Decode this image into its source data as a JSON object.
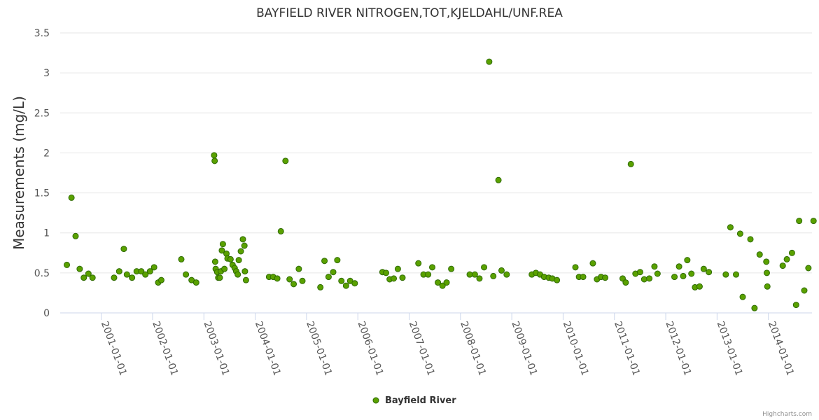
{
  "chart_data": {
    "type": "scatter",
    "title": "BAYFIELD RIVER NITROGEN,TOT,KJELDAHL/UNF.REA",
    "xlabel": "",
    "ylabel": "Measurements (mg/L)",
    "ylim": [
      0,
      3.5
    ],
    "yticks": [
      "0",
      "0.5",
      "1",
      "1.5",
      "2",
      "2.5",
      "3",
      "3.5"
    ],
    "xlim": [
      2000.2,
      2014.85
    ],
    "xticks": [
      {
        "label": "2001-01-01",
        "value": 2001.0
      },
      {
        "label": "2002-01-01",
        "value": 2002.0
      },
      {
        "label": "2003-01-01",
        "value": 2003.0
      },
      {
        "label": "2004-01-01",
        "value": 2004.0
      },
      {
        "label": "2005-01-01",
        "value": 2005.0
      },
      {
        "label": "2006-01-01",
        "value": 2006.0
      },
      {
        "label": "2007-01-01",
        "value": 2007.0
      },
      {
        "label": "2008-01-01",
        "value": 2008.0
      },
      {
        "label": "2009-01-01",
        "value": 2009.0
      },
      {
        "label": "2010-01-01",
        "value": 2010.0
      },
      {
        "label": "2011-01-01",
        "value": 2011.0
      },
      {
        "label": "2012-01-01",
        "value": 2012.0
      },
      {
        "label": "2013-01-01",
        "value": 2013.0
      },
      {
        "label": "2014-01-01",
        "value": 2014.0
      }
    ],
    "grid": true,
    "legend_position": "bottom-center",
    "series": [
      {
        "name": "Bayfield River",
        "color": "#5aa100",
        "points": [
          [
            2000.33,
            0.6
          ],
          [
            2000.42,
            1.44
          ],
          [
            2000.5,
            0.96
          ],
          [
            2000.58,
            0.55
          ],
          [
            2000.66,
            0.44
          ],
          [
            2000.75,
            0.49
          ],
          [
            2000.83,
            0.44
          ],
          [
            2001.25,
            0.44
          ],
          [
            2001.35,
            0.52
          ],
          [
            2001.44,
            0.8
          ],
          [
            2001.5,
            0.48
          ],
          [
            2001.6,
            0.44
          ],
          [
            2001.69,
            0.52
          ],
          [
            2001.78,
            0.52
          ],
          [
            2001.86,
            0.48
          ],
          [
            2001.95,
            0.52
          ],
          [
            2002.03,
            0.57
          ],
          [
            2002.11,
            0.38
          ],
          [
            2002.17,
            0.41
          ],
          [
            2002.56,
            0.67
          ],
          [
            2002.65,
            0.48
          ],
          [
            2002.76,
            0.41
          ],
          [
            2002.85,
            0.38
          ],
          [
            2003.2,
            1.97
          ],
          [
            2003.21,
            1.9
          ],
          [
            2003.22,
            0.64
          ],
          [
            2003.23,
            0.55
          ],
          [
            2003.26,
            0.51
          ],
          [
            2003.28,
            0.44
          ],
          [
            2003.31,
            0.44
          ],
          [
            2003.33,
            0.52
          ],
          [
            2003.35,
            0.78
          ],
          [
            2003.37,
            0.86
          ],
          [
            2003.4,
            0.55
          ],
          [
            2003.44,
            0.74
          ],
          [
            2003.46,
            0.68
          ],
          [
            2003.52,
            0.67
          ],
          [
            2003.56,
            0.6
          ],
          [
            2003.6,
            0.56
          ],
          [
            2003.63,
            0.52
          ],
          [
            2003.66,
            0.48
          ],
          [
            2003.68,
            0.66
          ],
          [
            2003.72,
            0.77
          ],
          [
            2003.76,
            0.92
          ],
          [
            2003.79,
            0.84
          ],
          [
            2003.8,
            0.52
          ],
          [
            2003.82,
            0.41
          ],
          [
            2004.27,
            0.45
          ],
          [
            2004.35,
            0.45
          ],
          [
            2004.43,
            0.43
          ],
          [
            2004.5,
            1.02
          ],
          [
            2004.59,
            1.9
          ],
          [
            2004.67,
            0.42
          ],
          [
            2004.75,
            0.36
          ],
          [
            2004.85,
            0.55
          ],
          [
            2004.92,
            0.4
          ],
          [
            2005.27,
            0.32
          ],
          [
            2005.35,
            0.65
          ],
          [
            2005.43,
            0.45
          ],
          [
            2005.52,
            0.51
          ],
          [
            2005.6,
            0.66
          ],
          [
            2005.68,
            0.4
          ],
          [
            2005.77,
            0.34
          ],
          [
            2005.85,
            0.4
          ],
          [
            2005.94,
            0.37
          ],
          [
            2006.48,
            0.51
          ],
          [
            2006.55,
            0.5
          ],
          [
            2006.62,
            0.42
          ],
          [
            2006.7,
            0.43
          ],
          [
            2006.78,
            0.55
          ],
          [
            2006.87,
            0.44
          ],
          [
            2007.18,
            0.62
          ],
          [
            2007.28,
            0.48
          ],
          [
            2007.37,
            0.48
          ],
          [
            2007.45,
            0.57
          ],
          [
            2007.56,
            0.38
          ],
          [
            2007.65,
            0.34
          ],
          [
            2007.73,
            0.38
          ],
          [
            2007.82,
            0.55
          ],
          [
            2008.18,
            0.48
          ],
          [
            2008.28,
            0.48
          ],
          [
            2008.37,
            0.43
          ],
          [
            2008.46,
            0.57
          ],
          [
            2008.56,
            3.14
          ],
          [
            2008.64,
            0.46
          ],
          [
            2008.74,
            1.66
          ],
          [
            2008.8,
            0.53
          ],
          [
            2008.9,
            0.48
          ],
          [
            2009.39,
            0.48
          ],
          [
            2009.47,
            0.5
          ],
          [
            2009.55,
            0.48
          ],
          [
            2009.63,
            0.45
          ],
          [
            2009.72,
            0.44
          ],
          [
            2009.79,
            0.43
          ],
          [
            2009.88,
            0.41
          ],
          [
            2010.24,
            0.57
          ],
          [
            2010.31,
            0.45
          ],
          [
            2010.39,
            0.45
          ],
          [
            2010.58,
            0.62
          ],
          [
            2010.66,
            0.42
          ],
          [
            2010.74,
            0.45
          ],
          [
            2010.82,
            0.44
          ],
          [
            2011.16,
            0.43
          ],
          [
            2011.22,
            0.38
          ],
          [
            2011.32,
            1.86
          ],
          [
            2011.41,
            0.49
          ],
          [
            2011.5,
            0.51
          ],
          [
            2011.58,
            0.42
          ],
          [
            2011.68,
            0.43
          ],
          [
            2011.78,
            0.58
          ],
          [
            2011.84,
            0.49
          ],
          [
            2012.17,
            0.45
          ],
          [
            2012.26,
            0.58
          ],
          [
            2012.34,
            0.46
          ],
          [
            2012.42,
            0.66
          ],
          [
            2012.5,
            0.49
          ],
          [
            2012.57,
            0.32
          ],
          [
            2012.66,
            0.33
          ],
          [
            2012.74,
            0.55
          ],
          [
            2012.84,
            0.51
          ],
          [
            2013.17,
            0.48
          ],
          [
            2013.26,
            1.07
          ],
          [
            2013.37,
            0.48
          ],
          [
            2013.45,
            0.99
          ],
          [
            2013.5,
            0.2
          ],
          [
            2013.65,
            0.92
          ],
          [
            2013.73,
            0.06
          ],
          [
            2013.83,
            0.73
          ],
          [
            2013.96,
            0.64
          ],
          [
            2013.97,
            0.5
          ],
          [
            2013.98,
            0.33
          ],
          [
            2014.28,
            0.59
          ],
          [
            2014.36,
            0.67
          ],
          [
            2014.46,
            0.75
          ],
          [
            2014.54,
            0.1
          ],
          [
            2014.6,
            1.15
          ],
          [
            2014.7,
            0.28
          ],
          [
            2014.78,
            0.56
          ],
          [
            2014.88,
            1.15
          ]
        ]
      }
    ]
  },
  "legend": {
    "label": "Bayfield River"
  },
  "credits": "Highcharts.com"
}
